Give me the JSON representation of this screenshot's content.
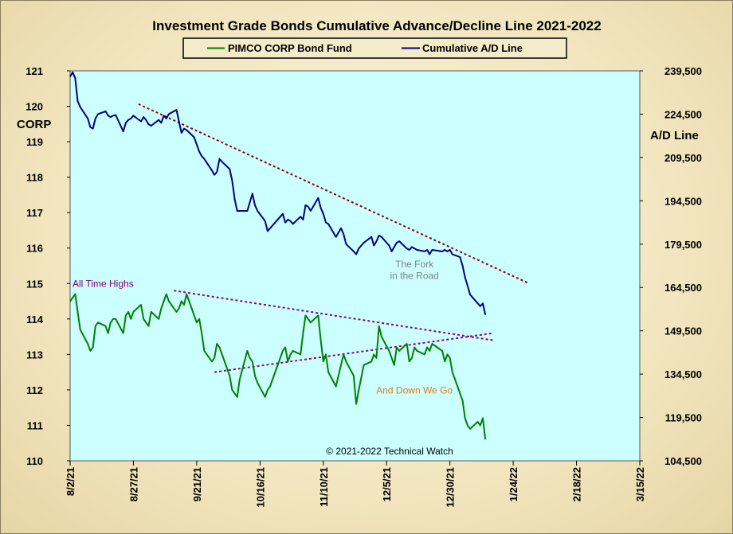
{
  "chart_data": {
    "type": "line",
    "title": "Investment Grade Bonds Cumulative Advance/Decline Line 2021-2022",
    "copyright": "© 2021-2022 Technical Watch",
    "left_axis": {
      "label": "CORP",
      "ylim": [
        110,
        121
      ],
      "ticks": [
        "121",
        "120",
        "119",
        "118",
        "117",
        "116",
        "115",
        "114",
        "113",
        "112",
        "111",
        "110"
      ]
    },
    "right_axis": {
      "label": "A/D Line",
      "ylim": [
        104500,
        239500
      ],
      "ticks": [
        "239,500",
        "224,500",
        "209,500",
        "194,500",
        "179,500",
        "164,500",
        "149,500",
        "134,500",
        "119,500",
        "104,500"
      ]
    },
    "x_axis": {
      "range": [
        "2021-08-02",
        "2022-03-15"
      ],
      "ticks": [
        "8/2/21",
        "8/27/21",
        "9/21/21",
        "10/16/21",
        "11/10/21",
        "12/5/21",
        "12/30/21",
        "1/24/22",
        "2/18/22",
        "3/15/22"
      ]
    },
    "legend_position": "top-center",
    "grid": false,
    "series": [
      {
        "name": "PIMCO CORP Bond Fund",
        "axis": "left",
        "color": "#008000",
        "points": [
          [
            "2021-08-02",
            114.5
          ],
          [
            "2021-08-03",
            114.6
          ],
          [
            "2021-08-04",
            114.7
          ],
          [
            "2021-08-05",
            114.2
          ],
          [
            "2021-08-06",
            113.7
          ],
          [
            "2021-08-09",
            113.3
          ],
          [
            "2021-08-10",
            113.1
          ],
          [
            "2021-08-11",
            113.2
          ],
          [
            "2021-08-12",
            113.8
          ],
          [
            "2021-08-13",
            113.9
          ],
          [
            "2021-08-16",
            113.8
          ],
          [
            "2021-08-17",
            113.6
          ],
          [
            "2021-08-18",
            113.9
          ],
          [
            "2021-08-19",
            114.0
          ],
          [
            "2021-08-20",
            114.0
          ],
          [
            "2021-08-23",
            113.6
          ],
          [
            "2021-08-24",
            114.1
          ],
          [
            "2021-08-25",
            114.2
          ],
          [
            "2021-08-26",
            114.0
          ],
          [
            "2021-08-27",
            114.2
          ],
          [
            "2021-08-30",
            114.4
          ],
          [
            "2021-08-31",
            114.0
          ],
          [
            "2021-09-01",
            113.9
          ],
          [
            "2021-09-02",
            113.8
          ],
          [
            "2021-09-03",
            114.2
          ],
          [
            "2021-09-06",
            114.0
          ],
          [
            "2021-09-07",
            114.3
          ],
          [
            "2021-09-08",
            114.5
          ],
          [
            "2021-09-09",
            114.7
          ],
          [
            "2021-09-10",
            114.5
          ],
          [
            "2021-09-13",
            114.2
          ],
          [
            "2021-09-14",
            114.3
          ],
          [
            "2021-09-15",
            114.5
          ],
          [
            "2021-09-16",
            114.4
          ],
          [
            "2021-09-17",
            114.7
          ],
          [
            "2021-09-20",
            114.1
          ],
          [
            "2021-09-21",
            113.9
          ],
          [
            "2021-09-22",
            114.0
          ],
          [
            "2021-09-23",
            113.6
          ],
          [
            "2021-09-24",
            113.1
          ],
          [
            "2021-09-27",
            112.8
          ],
          [
            "2021-09-28",
            112.9
          ],
          [
            "2021-09-29",
            113.3
          ],
          [
            "2021-09-30",
            113.2
          ],
          [
            "2021-10-01",
            113.0
          ],
          [
            "2021-10-04",
            112.4
          ],
          [
            "2021-10-05",
            112.0
          ],
          [
            "2021-10-06",
            111.9
          ],
          [
            "2021-10-07",
            111.8
          ],
          [
            "2021-10-08",
            112.3
          ],
          [
            "2021-10-11",
            113.1
          ],
          [
            "2021-10-12",
            112.9
          ],
          [
            "2021-10-13",
            112.8
          ],
          [
            "2021-10-14",
            112.4
          ],
          [
            "2021-10-15",
            112.2
          ],
          [
            "2021-10-18",
            111.8
          ],
          [
            "2021-10-19",
            112.0
          ],
          [
            "2021-10-20",
            112.1
          ],
          [
            "2021-10-21",
            112.3
          ],
          [
            "2021-10-22",
            112.5
          ],
          [
            "2021-10-25",
            113.1
          ],
          [
            "2021-10-26",
            113.2
          ],
          [
            "2021-10-27",
            112.8
          ],
          [
            "2021-10-28",
            113.0
          ],
          [
            "2021-10-29",
            113.1
          ],
          [
            "2021-11-01",
            113.0
          ],
          [
            "2021-11-02",
            113.6
          ],
          [
            "2021-11-03",
            114.1
          ],
          [
            "2021-11-04",
            114.0
          ],
          [
            "2021-11-05",
            113.9
          ],
          [
            "2021-11-08",
            114.1
          ],
          [
            "2021-11-09",
            113.4
          ],
          [
            "2021-11-10",
            112.8
          ],
          [
            "2021-11-11",
            113.0
          ],
          [
            "2021-11-12",
            112.5
          ],
          [
            "2021-11-15",
            112.1
          ],
          [
            "2021-11-16",
            112.4
          ],
          [
            "2021-11-17",
            112.7
          ],
          [
            "2021-11-18",
            113.0
          ],
          [
            "2021-11-19",
            112.8
          ],
          [
            "2021-11-22",
            112.4
          ],
          [
            "2021-11-23",
            111.6
          ],
          [
            "2021-11-24",
            112.0
          ],
          [
            "2021-11-26",
            112.7
          ],
          [
            "2021-11-29",
            112.8
          ],
          [
            "2021-11-30",
            113.0
          ],
          [
            "2021-12-01",
            112.9
          ],
          [
            "2021-12-02",
            113.8
          ],
          [
            "2021-12-03",
            113.5
          ],
          [
            "2021-12-06",
            113.1
          ],
          [
            "2021-12-07",
            112.9
          ],
          [
            "2021-12-08",
            112.7
          ],
          [
            "2021-12-09",
            113.2
          ],
          [
            "2021-12-10",
            113.1
          ],
          [
            "2021-12-13",
            113.3
          ],
          [
            "2021-12-14",
            112.8
          ],
          [
            "2021-12-15",
            112.9
          ],
          [
            "2021-12-16",
            113.2
          ],
          [
            "2021-12-17",
            113.1
          ],
          [
            "2021-12-20",
            113.0
          ],
          [
            "2021-12-21",
            113.2
          ],
          [
            "2021-12-22",
            113.1
          ],
          [
            "2021-12-23",
            113.3
          ],
          [
            "2021-12-27",
            113.1
          ],
          [
            "2021-12-28",
            112.8
          ],
          [
            "2021-12-29",
            113.0
          ],
          [
            "2021-12-30",
            112.9
          ],
          [
            "2021-12-31",
            112.5
          ],
          [
            "2022-01-03",
            111.9
          ],
          [
            "2022-01-04",
            111.7
          ],
          [
            "2022-01-05",
            111.2
          ],
          [
            "2022-01-06",
            111.0
          ],
          [
            "2022-01-07",
            110.9
          ],
          [
            "2022-01-10",
            111.1
          ],
          [
            "2022-01-11",
            111.0
          ],
          [
            "2022-01-12",
            111.2
          ],
          [
            "2022-01-13",
            110.6
          ]
        ]
      },
      {
        "name": "Cumulative A/D Line",
        "axis": "right",
        "color": "#000080",
        "points": [
          [
            "2021-08-02",
            237500
          ],
          [
            "2021-08-03",
            239000
          ],
          [
            "2021-08-04",
            237000
          ],
          [
            "2021-08-05",
            229000
          ],
          [
            "2021-08-06",
            227000
          ],
          [
            "2021-08-09",
            223000
          ],
          [
            "2021-08-10",
            220000
          ],
          [
            "2021-08-11",
            219500
          ],
          [
            "2021-08-12",
            223000
          ],
          [
            "2021-08-13",
            224500
          ],
          [
            "2021-08-16",
            225500
          ],
          [
            "2021-08-17",
            224000
          ],
          [
            "2021-08-18",
            223500
          ],
          [
            "2021-08-19",
            224000
          ],
          [
            "2021-08-20",
            224200
          ],
          [
            "2021-08-23",
            218500
          ],
          [
            "2021-08-24",
            221500
          ],
          [
            "2021-08-25",
            222500
          ],
          [
            "2021-08-26",
            223000
          ],
          [
            "2021-08-27",
            224000
          ],
          [
            "2021-08-30",
            222000
          ],
          [
            "2021-08-31",
            223500
          ],
          [
            "2021-09-01",
            222500
          ],
          [
            "2021-09-02",
            221000
          ],
          [
            "2021-09-03",
            220500
          ],
          [
            "2021-09-06",
            222500
          ],
          [
            "2021-09-07",
            221500
          ],
          [
            "2021-09-08",
            224000
          ],
          [
            "2021-09-09",
            223000
          ],
          [
            "2021-09-10",
            224500
          ],
          [
            "2021-09-13",
            226000
          ],
          [
            "2021-09-14",
            222000
          ],
          [
            "2021-09-15",
            218000
          ],
          [
            "2021-09-16",
            219500
          ],
          [
            "2021-09-17",
            219000
          ],
          [
            "2021-09-20",
            216500
          ],
          [
            "2021-09-21",
            214000
          ],
          [
            "2021-09-22",
            211500
          ],
          [
            "2021-09-23",
            210000
          ],
          [
            "2021-09-24",
            209000
          ],
          [
            "2021-09-27",
            205000
          ],
          [
            "2021-09-28",
            203500
          ],
          [
            "2021-09-29",
            204500
          ],
          [
            "2021-09-30",
            209000
          ],
          [
            "2021-10-01",
            208000
          ],
          [
            "2021-10-04",
            205500
          ],
          [
            "2021-10-05",
            201500
          ],
          [
            "2021-10-06",
            195000
          ],
          [
            "2021-10-07",
            191000
          ],
          [
            "2021-10-08",
            191000
          ],
          [
            "2021-10-11",
            191000
          ],
          [
            "2021-10-12",
            194000
          ],
          [
            "2021-10-13",
            197000
          ],
          [
            "2021-10-14",
            193000
          ],
          [
            "2021-10-15",
            191000
          ],
          [
            "2021-10-18",
            187500
          ],
          [
            "2021-10-19",
            184000
          ],
          [
            "2021-10-20",
            185000
          ],
          [
            "2021-10-21",
            186000
          ],
          [
            "2021-10-22",
            187000
          ],
          [
            "2021-10-25",
            190000
          ],
          [
            "2021-10-26",
            187000
          ],
          [
            "2021-10-27",
            188000
          ],
          [
            "2021-10-28",
            187500
          ],
          [
            "2021-10-29",
            186500
          ],
          [
            "2021-11-01",
            189000
          ],
          [
            "2021-11-02",
            188000
          ],
          [
            "2021-11-03",
            193000
          ],
          [
            "2021-11-04",
            192500
          ],
          [
            "2021-11-05",
            191000
          ],
          [
            "2021-11-08",
            195500
          ],
          [
            "2021-11-09",
            192000
          ],
          [
            "2021-11-10",
            190000
          ],
          [
            "2021-11-11",
            187000
          ],
          [
            "2021-11-12",
            186500
          ],
          [
            "2021-11-15",
            182000
          ],
          [
            "2021-11-16",
            183500
          ],
          [
            "2021-11-17",
            185000
          ],
          [
            "2021-11-18",
            183000
          ],
          [
            "2021-11-19",
            179500
          ],
          [
            "2021-11-22",
            177000
          ],
          [
            "2021-11-23",
            176000
          ],
          [
            "2021-11-24",
            178000
          ],
          [
            "2021-11-26",
            180000
          ],
          [
            "2021-11-29",
            182000
          ],
          [
            "2021-11-30",
            179000
          ],
          [
            "2021-12-01",
            180500
          ],
          [
            "2021-12-02",
            182500
          ],
          [
            "2021-12-03",
            182000
          ],
          [
            "2021-12-06",
            179000
          ],
          [
            "2021-12-07",
            177000
          ],
          [
            "2021-12-08",
            178500
          ],
          [
            "2021-12-09",
            180000
          ],
          [
            "2021-12-10",
            180500
          ],
          [
            "2021-12-13",
            178000
          ],
          [
            "2021-12-14",
            177500
          ],
          [
            "2021-12-15",
            178500
          ],
          [
            "2021-12-16",
            178000
          ],
          [
            "2021-12-17",
            177500
          ],
          [
            "2021-12-20",
            177000
          ],
          [
            "2021-12-21",
            177500
          ],
          [
            "2021-12-22",
            176000
          ],
          [
            "2021-12-23",
            177500
          ],
          [
            "2021-12-27",
            177000
          ],
          [
            "2021-12-28",
            177500
          ],
          [
            "2021-12-29",
            177000
          ],
          [
            "2021-12-30",
            177500
          ],
          [
            "2021-12-31",
            176000
          ],
          [
            "2022-01-03",
            175000
          ],
          [
            "2022-01-04",
            172000
          ],
          [
            "2022-01-05",
            168000
          ],
          [
            "2022-01-06",
            165000
          ],
          [
            "2022-01-07",
            162000
          ],
          [
            "2022-01-10",
            159000
          ],
          [
            "2022-01-11",
            158000
          ],
          [
            "2022-01-12",
            159000
          ],
          [
            "2022-01-13",
            155000
          ]
        ]
      }
    ],
    "trendlines": [
      {
        "axis": "right",
        "color": "#8b0000",
        "from": [
          "2021-08-29",
          228000
        ],
        "to": [
          "2022-01-30",
          166000
        ]
      },
      {
        "axis": "left",
        "color": "#8b008b",
        "from": [
          "2021-09-12",
          114.8
        ],
        "to": [
          "2022-01-16",
          113.4
        ]
      },
      {
        "axis": "left",
        "color": "#8b008b",
        "from": [
          "2021-09-28",
          112.5
        ],
        "to": [
          "2022-01-16",
          113.6
        ]
      }
    ],
    "annotations": [
      {
        "text": "All Time Highs",
        "color": "#800080",
        "axis": "left",
        "x": "2021-08-02",
        "y": 114.9
      },
      {
        "text": "The Fork",
        "color": "#808080",
        "axis": "right",
        "x": "2021-12-16",
        "y": 171500
      },
      {
        "text": "in the Road",
        "color": "#808080",
        "axis": "right",
        "x": "2021-12-16",
        "y": 167500
      },
      {
        "text": "And Down We Go",
        "color": "#e07b1a",
        "axis": "left",
        "x": "2021-12-16",
        "y": 111.9
      }
    ]
  }
}
